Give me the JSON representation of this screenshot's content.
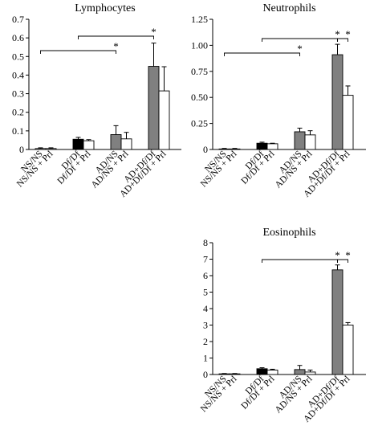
{
  "chart_data": [
    {
      "type": "bar",
      "title": "Lymphocytes",
      "categories": [
        "NS/NS",
        "NS/NS + Prl",
        "Df/Df",
        "Df/Df + Prl",
        "AD/NS",
        "AD/NS + Prl",
        "AD+Df/Df",
        "AD+Df/Df + Prl"
      ],
      "values": [
        0.005,
        0.005,
        0.055,
        0.047,
        0.08,
        0.057,
        0.447,
        0.315
      ],
      "errors": [
        0.004,
        0.004,
        0.01,
        0.006,
        0.048,
        0.035,
        0.125,
        0.13
      ],
      "fill_colors": [
        "#ffffff",
        "#ffffff",
        "#000000",
        "#ffffff",
        "#808080",
        "#ffffff",
        "#808080",
        "#ffffff"
      ],
      "ylim": [
        0,
        0.7
      ],
      "yticks": [
        "0",
        "0.1",
        "0.2",
        "0.3",
        "0.4",
        "0.5",
        "0.6",
        "0.7"
      ],
      "significance": [
        {
          "from": 0,
          "to": 4,
          "label": "*"
        },
        {
          "from": 2,
          "to": 6,
          "label": "*"
        }
      ]
    },
    {
      "type": "bar",
      "title": "Neutrophils",
      "categories": [
        "NS/NS",
        "NS/NS + Prl",
        "Df/Df",
        "Df/Df + Prl",
        "AD/NS",
        "AD/NS + Prl",
        "AD+Df/Df",
        "AD+Df/Df + Prl"
      ],
      "values": [
        0.005,
        0.005,
        0.06,
        0.055,
        0.17,
        0.14,
        0.91,
        0.52
      ],
      "errors": [
        0.005,
        0.005,
        0.01,
        0.005,
        0.035,
        0.04,
        0.1,
        0.09
      ],
      "fill_colors": [
        "#ffffff",
        "#ffffff",
        "#000000",
        "#ffffff",
        "#808080",
        "#ffffff",
        "#808080",
        "#ffffff"
      ],
      "ylim": [
        0,
        1.25
      ],
      "yticks": [
        "0",
        "0.25",
        "0.50",
        "0.75",
        "1.00",
        "1.25"
      ],
      "significance": [
        {
          "from": 0,
          "to": 4,
          "label": "*"
        },
        {
          "from": 2,
          "to": 6,
          "label": "*"
        },
        {
          "from": 6,
          "to": 7,
          "label": "*"
        }
      ]
    },
    {
      "type": "bar",
      "title": "Eosinophils",
      "categories": [
        "NS/NS",
        "NS/NS + Prl",
        "Df/Df",
        "Df/Df + Prl",
        "AD/NS",
        "AD/NS + Prl",
        "AD+Df/Df",
        "AD+Df/Df + Prl"
      ],
      "values": [
        0.04,
        0.04,
        0.35,
        0.27,
        0.3,
        0.15,
        6.35,
        3.0
      ],
      "errors": [
        0.02,
        0.02,
        0.06,
        0.05,
        0.25,
        0.12,
        0.3,
        0.15
      ],
      "fill_colors": [
        "#ffffff",
        "#ffffff",
        "#000000",
        "#ffffff",
        "#808080",
        "#ffffff",
        "#808080",
        "#ffffff"
      ],
      "ylim": [
        0,
        8
      ],
      "yticks": [
        "0",
        "1",
        "2",
        "3",
        "4",
        "5",
        "6",
        "7",
        "8"
      ],
      "significance": [
        {
          "from": 2,
          "to": 6,
          "label": "*"
        },
        {
          "from": 6,
          "to": 7,
          "label": "*"
        }
      ]
    }
  ]
}
